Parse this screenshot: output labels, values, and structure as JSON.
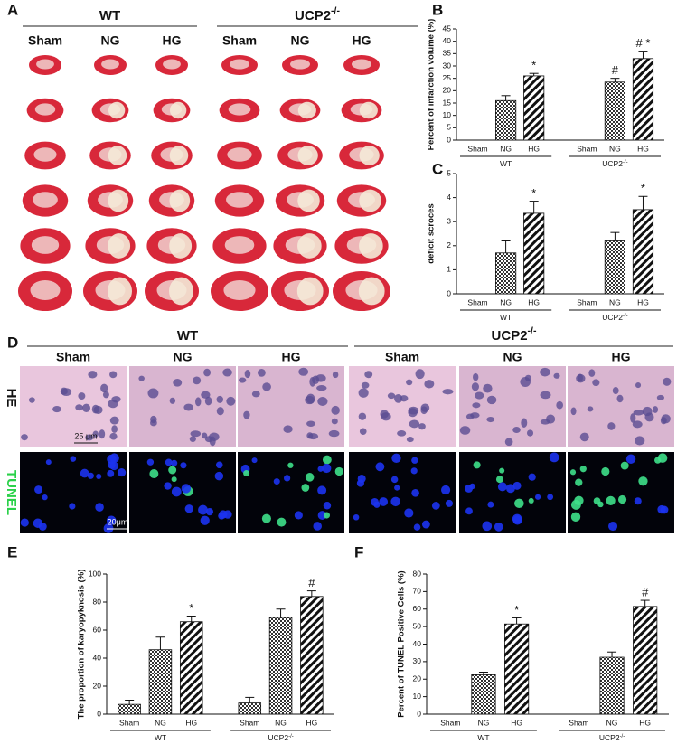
{
  "panel_a": {
    "label": "A",
    "groups": [
      {
        "label": "WT"
      },
      {
        "label": "UCP2",
        "sup": "-/-"
      }
    ],
    "columns": [
      "Sham",
      "NG",
      "HG",
      "Sham",
      "NG",
      "HG"
    ]
  },
  "panel_d": {
    "label": "D",
    "groups": [
      {
        "label": "WT"
      },
      {
        "label": "UCP2",
        "sup": "-/-"
      }
    ],
    "columns": [
      "Sham",
      "NG",
      "HG",
      "Sham",
      "NG",
      "HG"
    ],
    "rows": [
      "HE",
      "TUNEL"
    ],
    "scale_bars": [
      "25 μm",
      "20μm"
    ]
  },
  "chart_data": [
    {
      "type": "bar",
      "label": "B",
      "ylabel": "Percent of infarction volume (%)",
      "categories": [
        "Sham",
        "NG",
        "HG",
        "Sham",
        "NG",
        "HG"
      ],
      "values": [
        0,
        16,
        26,
        0,
        23.5,
        33
      ],
      "errors": [
        null,
        2,
        1,
        null,
        1.5,
        3
      ],
      "annotations": [
        null,
        null,
        "*",
        null,
        "#",
        "# *"
      ],
      "groups": [
        {
          "label": "WT"
        },
        {
          "label": "UCP2",
          "sup": "-/-"
        }
      ],
      "ylim": [
        0,
        45
      ],
      "yticks": [
        0,
        5,
        10,
        15,
        20,
        25,
        30,
        35,
        40,
        45
      ]
    },
    {
      "type": "bar",
      "label": "C",
      "ylabel": "deficit scroces",
      "categories": [
        "Sham",
        "NG",
        "HG",
        "Sham",
        "NG",
        "HG"
      ],
      "values": [
        0,
        1.7,
        3.35,
        0,
        2.2,
        3.5
      ],
      "errors": [
        null,
        0.5,
        0.5,
        null,
        0.35,
        0.55
      ],
      "annotations": [
        null,
        null,
        "*",
        null,
        null,
        "*"
      ],
      "groups": [
        {
          "label": "WT"
        },
        {
          "label": "UCP2",
          "sup": "-/-"
        }
      ],
      "ylim": [
        0,
        5
      ],
      "yticks": [
        0,
        1,
        2,
        3,
        4,
        5
      ]
    },
    {
      "type": "bar",
      "label": "E",
      "ylabel": "The proportion of karyopyknosis (%)",
      "categories": [
        "Sham",
        "NG",
        "HG",
        "Sham",
        "NG",
        "HG"
      ],
      "values": [
        7,
        46,
        66,
        8,
        69,
        84
      ],
      "errors": [
        3,
        9,
        4,
        4,
        6,
        4
      ],
      "annotations": [
        null,
        null,
        "*",
        null,
        null,
        "#"
      ],
      "groups": [
        {
          "label": "WT"
        },
        {
          "label": "UCP2",
          "sup": "-/-"
        }
      ],
      "ylim": [
        0,
        100
      ],
      "yticks": [
        0,
        20,
        40,
        60,
        80,
        100
      ]
    },
    {
      "type": "bar",
      "label": "F",
      "ylabel": "Percent of TUNEL Positive Cells (%)",
      "categories": [
        "Sham",
        "NG",
        "HG",
        "Sham",
        "NG",
        "HG"
      ],
      "values": [
        0,
        22.5,
        51.5,
        0,
        32.5,
        61.5
      ],
      "errors": [
        null,
        1.5,
        3.5,
        null,
        3,
        3.5
      ],
      "annotations": [
        null,
        null,
        "*",
        null,
        null,
        "#"
      ],
      "groups": [
        {
          "label": "WT"
        },
        {
          "label": "UCP2",
          "sup": "-/-"
        }
      ],
      "ylim": [
        0,
        80
      ],
      "yticks": [
        0,
        10,
        20,
        30,
        40,
        50,
        60,
        70,
        80
      ]
    }
  ]
}
